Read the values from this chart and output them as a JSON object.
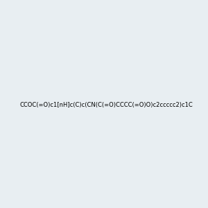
{
  "smiles": "CCOC(=O)c1[nH]c(C)c(CN(C(=O)CCCC(=O)O)c2ccccc2)c1C",
  "image_size": 300,
  "background_color": "#e8eef2",
  "title": "",
  "bond_color": "#000000",
  "atom_colors": {
    "N": "#0000ff",
    "O": "#ff0000",
    "H": "#808080"
  }
}
